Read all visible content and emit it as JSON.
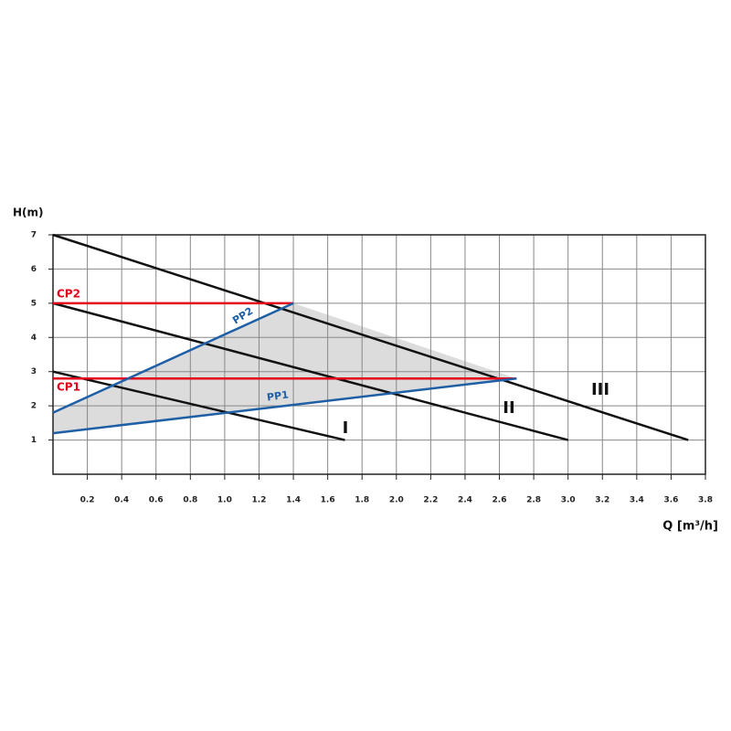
{
  "chart_data": {
    "type": "line",
    "y_label": "H(m)",
    "x_label": "Q [m³/h]",
    "xlim": [
      0,
      3.8
    ],
    "ylim": [
      0,
      7
    ],
    "xticks": [
      0.2,
      0.4,
      0.6,
      0.8,
      {
        "value": 1,
        "label": "1.0"
      },
      1.2,
      1.4,
      1.6,
      1.8,
      {
        "value": 2,
        "label": "2.0"
      },
      2.2,
      2.4,
      2.6,
      2.8,
      {
        "value": 3,
        "label": "3.0"
      },
      3.2,
      3.4,
      3.6,
      3.8
    ],
    "yticks": [
      1,
      2,
      3,
      4,
      5,
      6,
      7
    ],
    "grid": true,
    "shaded_region": {
      "color": "#dcdcdc",
      "x": [
        0,
        0,
        1.4,
        2.7
      ],
      "values": [
        1.2,
        1.8,
        5,
        2.8
      ]
    },
    "series": [
      {
        "name": "III",
        "color": "#111111",
        "x": [
          0,
          3.7
        ],
        "values": [
          7,
          1
        ]
      },
      {
        "name": "II",
        "color": "#111111",
        "x": [
          0,
          3.0
        ],
        "values": [
          5,
          1
        ]
      },
      {
        "name": "I",
        "color": "#111111",
        "x": [
          0,
          1.7
        ],
        "values": [
          3,
          1
        ]
      },
      {
        "name": "CP2",
        "color": "#e3001b",
        "x": [
          0,
          1.4
        ],
        "values": [
          5,
          5
        ]
      },
      {
        "name": "CP1",
        "color": "#e3001b",
        "x": [
          0,
          2.7
        ],
        "values": [
          2.8,
          2.8
        ]
      },
      {
        "name": "PP2",
        "color": "#1f5fa6",
        "x": [
          0,
          1.4
        ],
        "values": [
          1.8,
          5
        ]
      },
      {
        "name": "PP1",
        "color": "#1f5fa6",
        "x": [
          0,
          2.7
        ],
        "values": [
          1.2,
          2.8
        ]
      }
    ]
  }
}
